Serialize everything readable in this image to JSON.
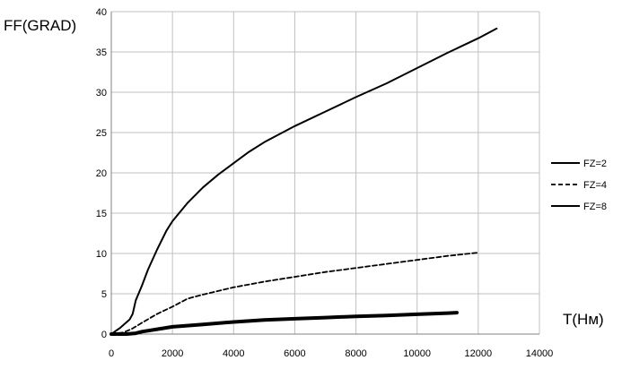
{
  "chart_data": {
    "type": "line",
    "title": "",
    "xlabel": "T(Нм)",
    "ylabel": "FF(GRAD)",
    "xlim": [
      0,
      14000
    ],
    "ylim": [
      0,
      40
    ],
    "xticks": [
      "0",
      "2000",
      "4000",
      "6000",
      "8000",
      "10000",
      "12000",
      "14000"
    ],
    "yticks": [
      "0",
      "5",
      "10",
      "15",
      "20",
      "25",
      "30",
      "35",
      "40"
    ],
    "grid": true,
    "legend_position": "right",
    "series": [
      {
        "name": "FZ=2",
        "style": "solid",
        "color": "#000000",
        "points": [
          [
            0,
            0
          ],
          [
            300,
            0.8
          ],
          [
            600,
            1.8
          ],
          [
            700,
            2.5
          ],
          [
            800,
            4.2
          ],
          [
            1000,
            6
          ],
          [
            1200,
            8
          ],
          [
            1500,
            10.5
          ],
          [
            1800,
            12.8
          ],
          [
            2000,
            14
          ],
          [
            2500,
            16.3
          ],
          [
            3000,
            18.2
          ],
          [
            3500,
            19.8
          ],
          [
            4000,
            21.2
          ],
          [
            4500,
            22.6
          ],
          [
            5000,
            23.8
          ],
          [
            6000,
            25.8
          ],
          [
            7000,
            27.6
          ],
          [
            8000,
            29.4
          ],
          [
            9000,
            31.1
          ],
          [
            10000,
            33
          ],
          [
            11000,
            34.9
          ],
          [
            12000,
            36.7
          ],
          [
            12600,
            37.9
          ]
        ]
      },
      {
        "name": "FZ=4",
        "style": "dashed",
        "color": "#000000",
        "points": [
          [
            0,
            0
          ],
          [
            400,
            0.2
          ],
          [
            700,
            0.7
          ],
          [
            1000,
            1.4
          ],
          [
            1500,
            2.5
          ],
          [
            2000,
            3.4
          ],
          [
            2500,
            4.4
          ],
          [
            3000,
            4.9
          ],
          [
            4000,
            5.8
          ],
          [
            5000,
            6.5
          ],
          [
            6000,
            7.1
          ],
          [
            7000,
            7.7
          ],
          [
            8000,
            8.2
          ],
          [
            9000,
            8.7
          ],
          [
            10000,
            9.2
          ],
          [
            11000,
            9.7
          ],
          [
            12000,
            10.1
          ]
        ]
      },
      {
        "name": "FZ=8",
        "style": "thick",
        "color": "#000000",
        "points": [
          [
            0,
            0
          ],
          [
            500,
            0
          ],
          [
            800,
            0.1
          ],
          [
            1000,
            0.3
          ],
          [
            1500,
            0.6
          ],
          [
            2000,
            0.9
          ],
          [
            3000,
            1.2
          ],
          [
            4000,
            1.5
          ],
          [
            5000,
            1.75
          ],
          [
            6000,
            1.9
          ],
          [
            7000,
            2.05
          ],
          [
            8000,
            2.2
          ],
          [
            9000,
            2.3
          ],
          [
            10000,
            2.45
          ],
          [
            11000,
            2.6
          ],
          [
            11300,
            2.65
          ]
        ]
      }
    ]
  }
}
